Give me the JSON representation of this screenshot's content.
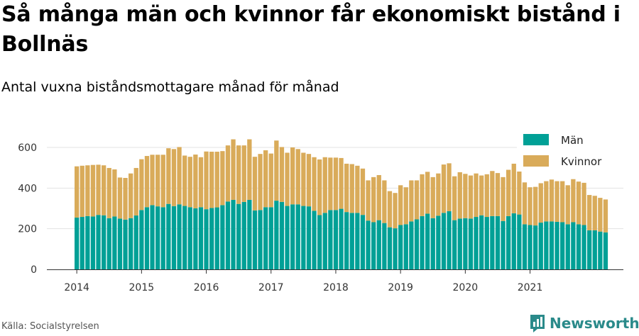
{
  "title": "Så många män och kvinnor får ekonomiskt bistånd i Bollnäs",
  "subtitle": "Antal vuxna biståndsmottagare månad för månad",
  "source": "Källa: Socialstyrelsen",
  "brand": {
    "name": "Newsworthy",
    "icon": "newsworthy-logo-icon"
  },
  "colors": {
    "men": "#00a096",
    "women": "#d9ab5a",
    "grid": "#e3e3e3",
    "axis": "#333333"
  },
  "chart_data": {
    "type": "bar",
    "stacked": true,
    "title": "",
    "xlabel": "",
    "ylabel": "",
    "ylim": [
      0,
      700
    ],
    "yticks": [
      0,
      200,
      400,
      600
    ],
    "x_start": "2014-01",
    "xticks": [
      "2014",
      "2015",
      "2016",
      "2017",
      "2018",
      "2019",
      "2020",
      "2021"
    ],
    "grid": true,
    "legend_position": "top-right",
    "series": [
      {
        "name": "Män",
        "values": [
          255,
          258,
          262,
          260,
          268,
          266,
          252,
          260,
          250,
          245,
          252,
          265,
          292,
          306,
          316,
          310,
          306,
          322,
          311,
          320,
          312,
          306,
          300,
          306,
          296,
          302,
          305,
          316,
          334,
          342,
          322,
          332,
          342,
          290,
          292,
          306,
          306,
          338,
          332,
          312,
          320,
          320,
          312,
          310,
          288,
          267,
          278,
          292,
          292,
          298,
          282,
          278,
          278,
          268,
          240,
          232,
          242,
          228,
          207,
          202,
          218,
          222,
          236,
          246,
          262,
          274,
          252,
          264,
          278,
          286,
          242,
          250,
          252,
          250,
          258,
          266,
          258,
          262,
          262,
          238,
          262,
          276,
          270,
          222,
          218,
          216,
          230,
          236,
          236,
          234,
          232,
          222,
          232,
          222,
          218,
          192,
          192,
          186,
          182
        ]
      },
      {
        "name": "Kvinnor",
        "values": [
          252,
          252,
          250,
          254,
          247,
          246,
          247,
          232,
          202,
          205,
          220,
          234,
          250,
          252,
          248,
          254,
          258,
          274,
          281,
          282,
          248,
          248,
          265,
          246,
          284,
          277,
          274,
          266,
          276,
          298,
          288,
          278,
          298,
          264,
          276,
          280,
          264,
          296,
          270,
          262,
          280,
          272,
          262,
          258,
          264,
          274,
          274,
          258,
          258,
          250,
          238,
          240,
          232,
          228,
          198,
          222,
          222,
          210,
          178,
          174,
          196,
          182,
          202,
          192,
          206,
          206,
          202,
          208,
          238,
          236,
          216,
          228,
          218,
          212,
          214,
          196,
          210,
          222,
          212,
          216,
          228,
          244,
          244,
          206,
          186,
          190,
          194,
          198,
          206,
          200,
          202,
          192,
          212,
          210,
          208,
          174,
          170,
          166,
          162
        ]
      }
    ]
  }
}
